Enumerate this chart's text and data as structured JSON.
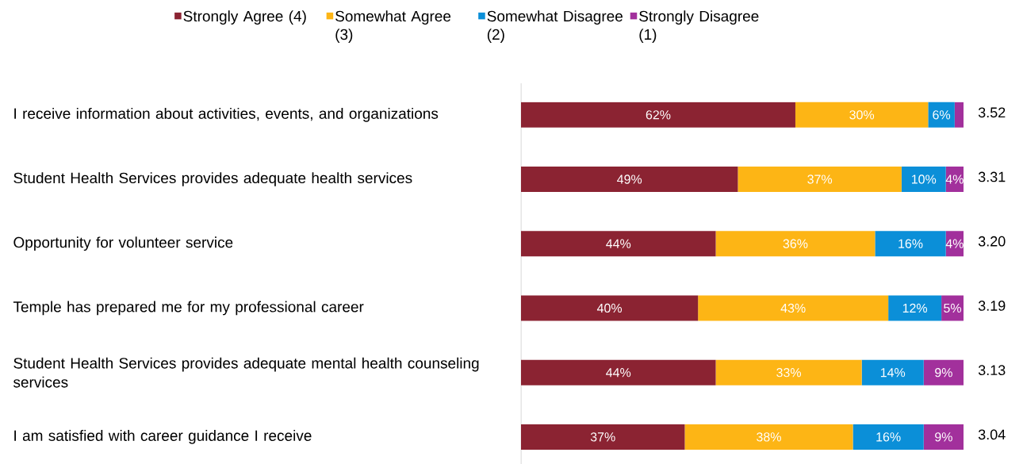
{
  "chart_data": {
    "type": "bar",
    "orientation": "horizontal",
    "stacked": true,
    "legend": "top",
    "categories": [
      "I receive information about activities, events, and organizations",
      "Student Health Services provides adequate health services",
      "Opportunity for volunteer service",
      "Temple has prepared me for my professional career",
      "Student Health Services provides adequate mental health counseling services",
      "I am satisfied with career guidance I receive"
    ],
    "xlim": [
      0,
      100
    ],
    "series": [
      {
        "name": "Strongly Agree (4)",
        "color": "#8b2332",
        "values": [
          62,
          49,
          44,
          40,
          44,
          37
        ],
        "value_labels": [
          "62%",
          "49%",
          "44%",
          "40%",
          "44%",
          "37%"
        ]
      },
      {
        "name": "Somewhat Agree (3)",
        "color": "#fdb515",
        "values": [
          30,
          37,
          36,
          43,
          33,
          38
        ],
        "value_labels": [
          "30%",
          "37%",
          "36%",
          "43%",
          "33%",
          "38%"
        ]
      },
      {
        "name": "Somewhat Disagree (2)",
        "color": "#0b8fd8",
        "values": [
          6,
          10,
          16,
          12,
          14,
          16
        ],
        "value_labels": [
          "6%",
          "10%",
          "16%",
          "12%",
          "14%",
          "16%"
        ]
      },
      {
        "name": "Strongly Disagree (1)",
        "color": "#a2309c",
        "values": [
          2,
          4,
          4,
          5,
          9,
          9
        ],
        "value_labels": [
          null,
          "4%",
          "4%",
          "5%",
          "9%",
          "9%"
        ]
      }
    ],
    "annotations": [
      "3.52",
      "3.31",
      "3.20",
      "3.19",
      "3.13",
      "3.04"
    ]
  }
}
